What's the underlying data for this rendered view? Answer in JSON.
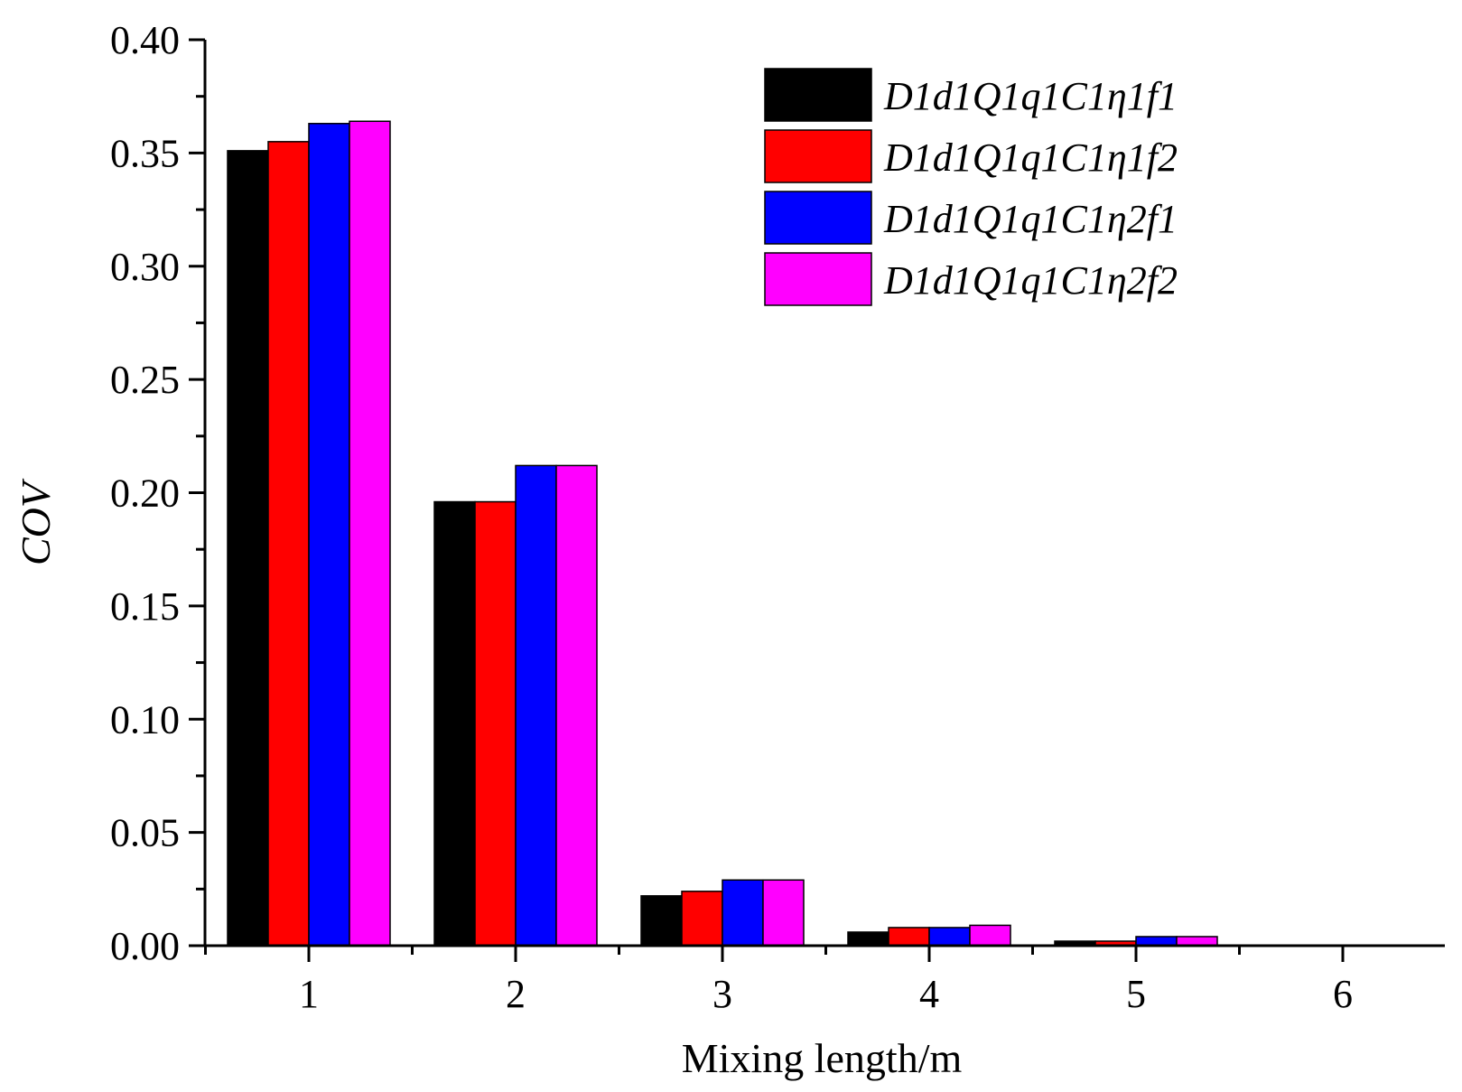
{
  "chart_data": {
    "type": "bar",
    "title": "",
    "xlabel": "Mixing length/m",
    "ylabel": "COV",
    "categories": [
      "1",
      "2",
      "3",
      "4",
      "5",
      "6"
    ],
    "ylim": [
      0,
      0.4
    ],
    "yticks": [
      "0.00",
      "0.05",
      "0.10",
      "0.15",
      "0.20",
      "0.25",
      "0.30",
      "0.35",
      "0.40"
    ],
    "legend_position": "top-right",
    "series": [
      {
        "name": "D1d1Q1q1C1η1f1",
        "color": "#000000",
        "values": [
          0.351,
          0.196,
          0.022,
          0.006,
          0.002,
          0.0
        ]
      },
      {
        "name": "D1d1Q1q1C1η1f2",
        "color": "#ff0000",
        "values": [
          0.355,
          0.196,
          0.024,
          0.008,
          0.002,
          0.0
        ]
      },
      {
        "name": "D1d1Q1q1C1η2f1",
        "color": "#0000ff",
        "values": [
          0.363,
          0.212,
          0.029,
          0.008,
          0.004,
          0.0
        ]
      },
      {
        "name": "D1d1Q1q1C1η2f2",
        "color": "#ff00ff",
        "values": [
          0.364,
          0.212,
          0.029,
          0.009,
          0.004,
          0.0
        ]
      }
    ]
  }
}
